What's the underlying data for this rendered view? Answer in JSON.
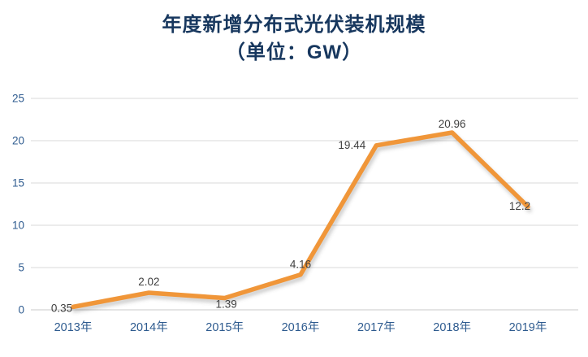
{
  "title": {
    "line1": "年度新增分布式光伏装机规模",
    "line2": "（单位：GW）"
  },
  "chart_data": {
    "type": "line",
    "title": "年度新增分布式光伏装机规模（单位：GW）",
    "categories": [
      "2013年",
      "2014年",
      "2015年",
      "2016年",
      "2017年",
      "2018年",
      "2019年"
    ],
    "values": [
      0.35,
      2.02,
      1.39,
      4.16,
      19.44,
      20.96,
      12.2
    ],
    "point_labels": [
      "0.35",
      "2.02",
      "1.39",
      "4.16",
      "19.44",
      "20.96",
      "12.2"
    ],
    "ylabel": "",
    "xlabel": "",
    "ylim": [
      0,
      25
    ],
    "yticks": [
      0,
      5,
      10,
      15,
      20,
      25
    ],
    "grid": true,
    "legend": "none",
    "colors": {
      "line_color": "#F09639",
      "title_color": "#17375E",
      "axis_label_color": "#2E5B8F",
      "point_label_color": "#404040",
      "grid_color": "#d9d9d9"
    }
  }
}
